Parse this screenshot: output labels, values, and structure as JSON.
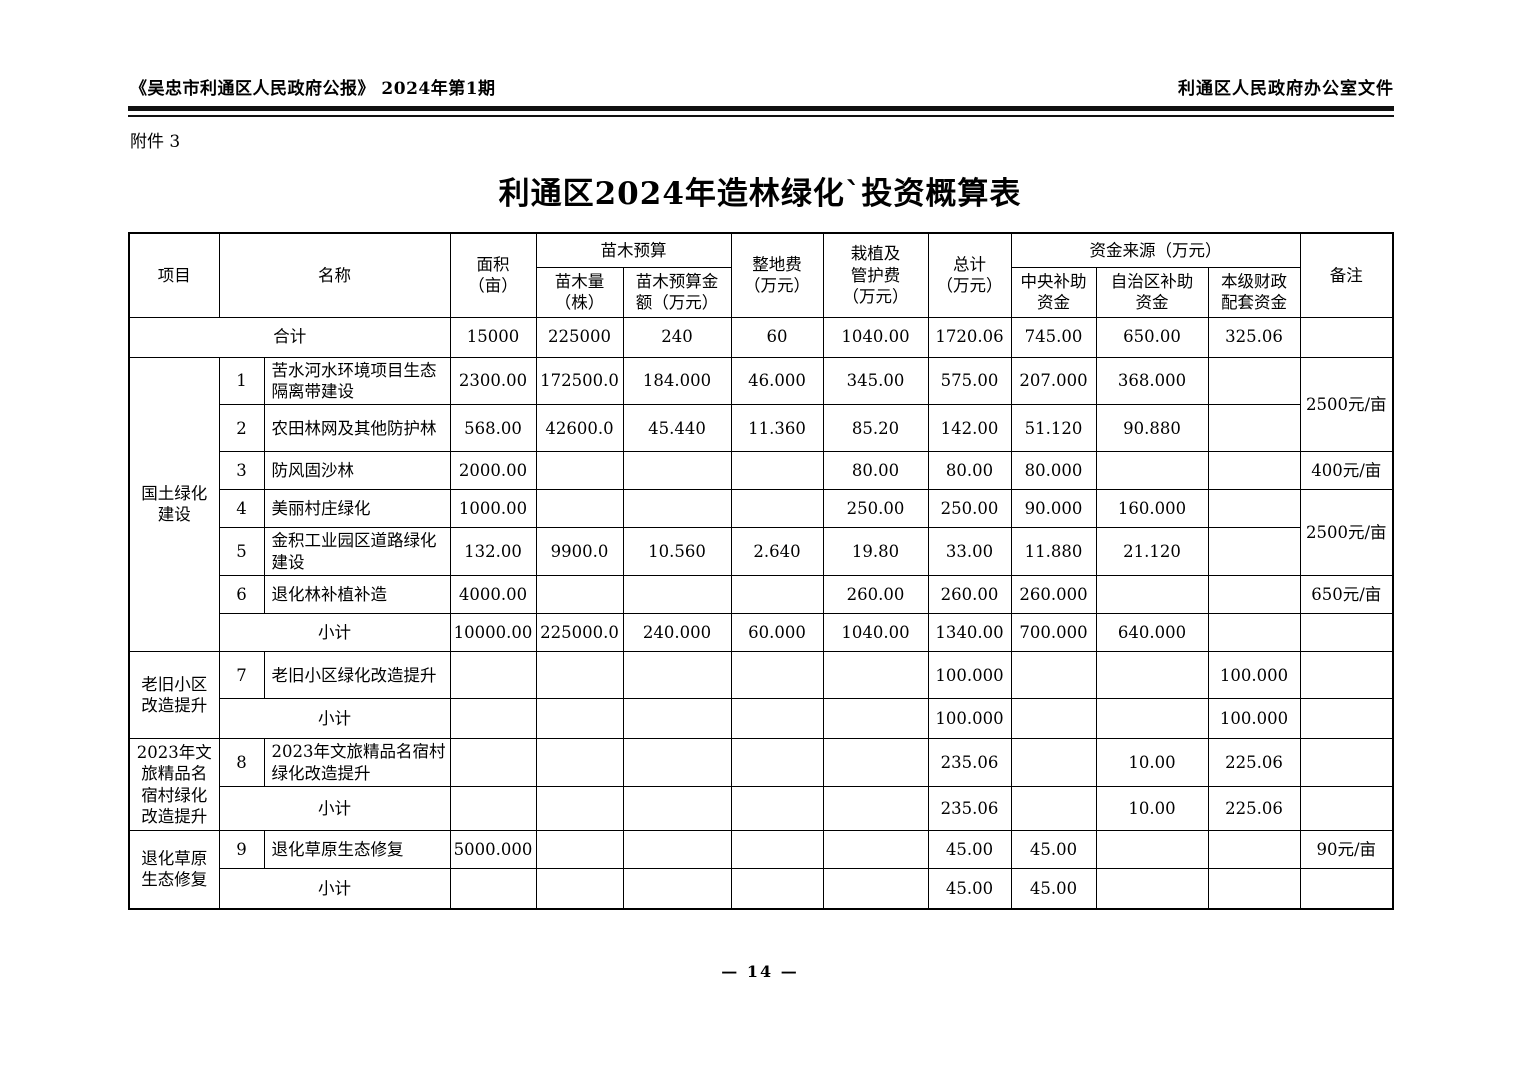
{
  "page": {
    "header_left": "《吴忠市利通区人民政府公报》 2024年第1期",
    "header_right": "利通区人民政府办公室文件",
    "attachment_label": "附件 3",
    "title": "利通区2024年造林绿化`投资概算表",
    "page_number": "— 14 —"
  },
  "table": {
    "header": {
      "project": "项目",
      "name": "名称",
      "area": "面积\n（亩）",
      "seedling_budget": "苗木预算",
      "seedling_qty": "苗木量\n（株）",
      "seedling_amount": "苗木预算金\n额（万元）",
      "land_prep": "整地费\n（万元）",
      "planting": "栽植及\n管护费\n（万元）",
      "total": "总计\n（万元）",
      "funding_source": "资金来源（万元）",
      "central": "中央补助\n资金",
      "regional": "自治区补助\n资金",
      "local": "本级财政\n配套资金",
      "remark": "备注"
    },
    "rows": [
      {
        "label": "合计",
        "area": "15000",
        "qty": "225000",
        "amount": "240",
        "prep": "60",
        "plant": "1040.00",
        "total": "1720.06",
        "central": "745.00",
        "region": "650.00",
        "local": "325.06"
      },
      {
        "group": "国土绿化\n建设",
        "num": "1",
        "name": "苦水河水环境项目生态隔离带建设",
        "area": "2300.00",
        "qty": "172500.0",
        "amount": "184.000",
        "prep": "46.000",
        "plant": "345.00",
        "total": "575.00",
        "central": "207.000",
        "region": "368.000",
        "remark": "2500元/亩"
      },
      {
        "num": "2",
        "name": "农田林网及其他防护林",
        "area": "568.00",
        "qty": "42600.0",
        "amount": "45.440",
        "prep": "11.360",
        "plant": "85.20",
        "total": "142.00",
        "central": "51.120",
        "region": "90.880"
      },
      {
        "num": "3",
        "name": "防风固沙林",
        "area": "2000.00",
        "plant": "80.00",
        "total": "80.00",
        "central": "80.000",
        "remark": "400元/亩"
      },
      {
        "num": "4",
        "name": "美丽村庄绿化",
        "area": "1000.00",
        "plant": "250.00",
        "total": "250.00",
        "central": "90.000",
        "region": "160.000",
        "remark": "2500元/亩"
      },
      {
        "num": "5",
        "name": "金积工业园区道路绿化建设",
        "area": "132.00",
        "qty": "9900.0",
        "amount": "10.560",
        "prep": "2.640",
        "plant": "19.80",
        "total": "33.00",
        "central": "11.880",
        "region": "21.120"
      },
      {
        "num": "6",
        "name": "退化林补植补造",
        "area": "4000.00",
        "plant": "260.00",
        "total": "260.00",
        "central": "260.000",
        "remark": "650元/亩"
      },
      {
        "label": "小计",
        "area": "10000.00",
        "qty": "225000.0",
        "amount": "240.000",
        "prep": "60.000",
        "plant": "1040.00",
        "total": "1340.00",
        "central": "700.000",
        "region": "640.000"
      },
      {
        "group": "老旧小区\n改造提升",
        "num": "7",
        "name": "老旧小区绿化改造提升",
        "total": "100.000",
        "local": "100.000"
      },
      {
        "label": "小计",
        "total": "100.000",
        "local": "100.000"
      },
      {
        "group": "2023年文\n旅精品名\n宿村绿化\n改造提升",
        "num": "8",
        "name": "2023年文旅精品名宿村绿化改造提升",
        "total": "235.06",
        "region": "10.00",
        "local": "225.06"
      },
      {
        "label": "小计",
        "total": "235.06",
        "region": "10.00",
        "local": "225.06"
      },
      {
        "group": "退化草原\n生态修复",
        "num": "9",
        "name": "退化草原生态修复",
        "area": "5000.000",
        "total": "45.00",
        "central": "45.00",
        "remark": "90元/亩"
      },
      {
        "label": "小计",
        "total": "45.00",
        "central": "45.00"
      }
    ]
  }
}
